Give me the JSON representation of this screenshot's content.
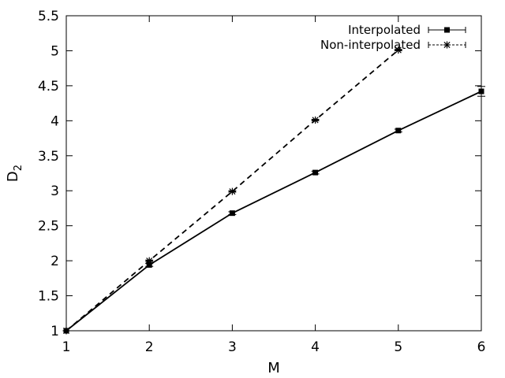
{
  "chart_data": {
    "type": "line",
    "xlabel": "M",
    "ylabel": "D",
    "ylabel_subscript": "2",
    "xlim": [
      1,
      6
    ],
    "ylim": [
      1,
      5.5
    ],
    "xticks": [
      "1",
      "2",
      "3",
      "4",
      "5",
      "6"
    ],
    "yticks": [
      "1",
      "1.5",
      "2",
      "2.5",
      "3",
      "3.5",
      "4",
      "4.5",
      "5",
      "5.5"
    ],
    "grid": false,
    "legend_position": "top-right",
    "series": [
      {
        "name": "Interpolated",
        "style": "solid",
        "marker": "square",
        "error_bars": true,
        "x": [
          1,
          2,
          3,
          4,
          5,
          6
        ],
        "y": [
          1.0,
          1.94,
          2.68,
          3.26,
          3.86,
          4.42
        ],
        "err": [
          0.0,
          0.02,
          0.02,
          0.02,
          0.02,
          0.07
        ]
      },
      {
        "name": "Non-interpolated",
        "style": "dashed",
        "marker": "asterisk",
        "error_bars": true,
        "x": [
          1,
          2,
          3,
          4,
          5
        ],
        "y": [
          1.0,
          2.0,
          2.99,
          4.01,
          5.01
        ],
        "err": [
          0.0,
          0.01,
          0.01,
          0.01,
          0.01
        ]
      }
    ]
  }
}
